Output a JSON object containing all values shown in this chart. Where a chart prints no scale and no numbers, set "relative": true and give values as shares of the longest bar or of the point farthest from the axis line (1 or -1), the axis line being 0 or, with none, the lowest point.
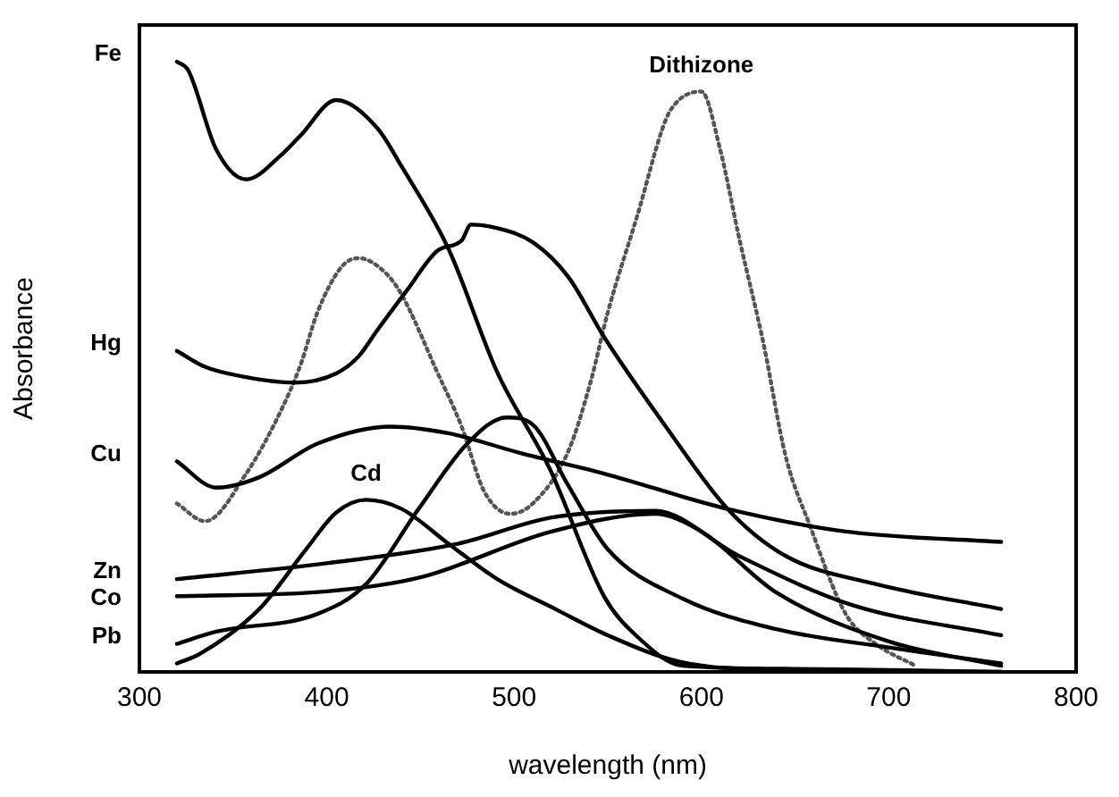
{
  "chart_data": {
    "type": "line",
    "xlabel": "wavelength (nm)",
    "ylabel": "Absorbance",
    "relative": true,
    "xlim": [
      300,
      800
    ],
    "xticks": [
      300,
      400,
      500,
      600,
      700,
      800
    ],
    "grid": false,
    "legend": false,
    "marker": "none",
    "series": [
      {
        "name": "Fe",
        "color": "#000000",
        "x": [
          320,
          326,
          341,
          357,
          376,
          386,
          405,
          427,
          440,
          465,
          491,
          519,
          548,
          565,
          590,
          650,
          760
        ],
        "values": [
          1.0,
          0.986,
          0.856,
          0.807,
          0.848,
          0.879,
          0.937,
          0.891,
          0.828,
          0.693,
          0.491,
          0.333,
          0.124,
          0.06,
          0.01,
          0.005,
          0.0
        ]
      },
      {
        "name": "Hg",
        "color": "#000000",
        "x": [
          320,
          335,
          357,
          383,
          405,
          417,
          427,
          443,
          459,
          472,
          477,
          491,
          510,
          529,
          548,
          581,
          614,
          645,
          693,
          760
        ],
        "values": [
          0.526,
          0.5,
          0.483,
          0.474,
          0.489,
          0.517,
          0.56,
          0.626,
          0.69,
          0.707,
          0.733,
          0.727,
          0.704,
          0.647,
          0.549,
          0.402,
          0.267,
          0.19,
          0.144,
          0.103
        ]
      },
      {
        "name": "Cu",
        "color": "#000000",
        "x": [
          320,
          341,
          364,
          395,
          434,
          465,
          503,
          548,
          614,
          677,
          760
        ],
        "values": [
          0.345,
          0.302,
          0.319,
          0.374,
          0.402,
          0.391,
          0.359,
          0.325,
          0.267,
          0.23,
          0.213
        ]
      },
      {
        "name": "Zn",
        "color": "#000000",
        "x": [
          320,
          400,
          470,
          520,
          575,
          620,
          680,
          760
        ],
        "values": [
          0.152,
          0.178,
          0.21,
          0.253,
          0.264,
          0.19,
          0.11,
          0.06
        ]
      },
      {
        "name": "Co",
        "color": "#000000",
        "x": [
          320,
          400,
          450,
          520,
          575,
          600,
          640,
          700,
          760
        ],
        "values": [
          0.124,
          0.132,
          0.155,
          0.23,
          0.259,
          0.23,
          0.13,
          0.05,
          0.01
        ]
      },
      {
        "name": "Pb",
        "color": "#000000",
        "x": [
          320,
          341,
          395,
          421,
          449,
          475,
          496,
          510,
          529,
          550,
          590,
          640,
          700,
          760
        ],
        "values": [
          0.046,
          0.066,
          0.095,
          0.144,
          0.267,
          0.374,
          0.417,
          0.405,
          0.305,
          0.201,
          0.12,
          0.07,
          0.04,
          0.014
        ]
      },
      {
        "name": "Cd",
        "color": "#000000",
        "x": [
          320,
          332,
          364,
          389,
          405,
          421,
          440,
          465,
          491,
          522,
          550,
          588,
          645,
          760
        ],
        "values": [
          0.014,
          0.029,
          0.103,
          0.201,
          0.261,
          0.282,
          0.267,
          0.21,
          0.152,
          0.103,
          0.06,
          0.017,
          0.003,
          0.0
        ]
      },
      {
        "name": "Dithizone",
        "color": "#555555",
        "line_style": "dotted",
        "x": [
          320,
          335,
          357,
          376,
          386,
          395,
          408,
          417,
          431,
          440,
          459,
          472,
          484,
          498,
          510,
          529,
          541,
          550,
          566,
          581,
          588,
          600,
          610,
          620,
          633,
          645,
          658,
          677,
          693,
          715
        ],
        "values": [
          0.276,
          0.247,
          0.325,
          0.431,
          0.503,
          0.589,
          0.664,
          0.678,
          0.655,
          0.618,
          0.491,
          0.402,
          0.296,
          0.259,
          0.276,
          0.362,
          0.477,
          0.589,
          0.75,
          0.905,
          0.937,
          0.951,
          0.856,
          0.713,
          0.54,
          0.353,
          0.239,
          0.095,
          0.046,
          0.009
        ]
      }
    ]
  }
}
